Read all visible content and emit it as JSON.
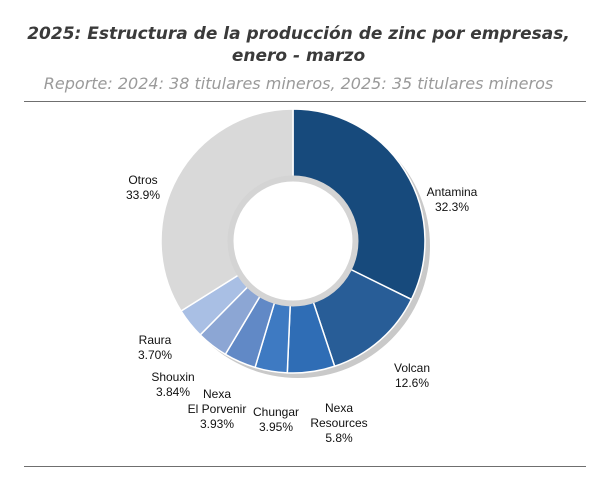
{
  "chart_data": {
    "type": "pie",
    "title_line1": "2025: Estructura de la producción de zinc por empresas,",
    "title_line2": "enero - marzo",
    "subtitle": "Reporte: 2024: 38 titulares mineros, 2025: 35 titulares mineros",
    "slices": [
      {
        "name": "Antamina",
        "label_lines": [
          "Antamina"
        ],
        "value": 32.3,
        "value_label": "32.3%",
        "color": "#174a7c"
      },
      {
        "name": "Volcan",
        "label_lines": [
          "Volcan"
        ],
        "value": 12.6,
        "value_label": "12.6%",
        "color": "#285d97"
      },
      {
        "name": "Nexa Resources",
        "label_lines": [
          "Nexa",
          "Resources"
        ],
        "value": 5.8,
        "value_label": "5.8%",
        "color": "#2f6db5"
      },
      {
        "name": "Chungar",
        "label_lines": [
          "Chungar"
        ],
        "value": 3.95,
        "value_label": "3.95%",
        "color": "#3e7ac2"
      },
      {
        "name": "Nexa El Porvenir",
        "label_lines": [
          "Nexa",
          "El Porvenir"
        ],
        "value": 3.93,
        "value_label": "3.93%",
        "color": "#6189c6"
      },
      {
        "name": "Shouxin",
        "label_lines": [
          "Shouxin"
        ],
        "value": 3.84,
        "value_label": "3.84%",
        "color": "#8ca6d4"
      },
      {
        "name": "Raura",
        "label_lines": [
          "Raura"
        ],
        "value": 3.7,
        "value_label": "3.70%",
        "color": "#a9bfe4"
      },
      {
        "name": "Otros",
        "label_lines": [
          "Otros"
        ],
        "value": 33.9,
        "value_label": "33.9%",
        "color": "#d9d9d9"
      }
    ],
    "shadow_color": "#c9c9c9"
  }
}
